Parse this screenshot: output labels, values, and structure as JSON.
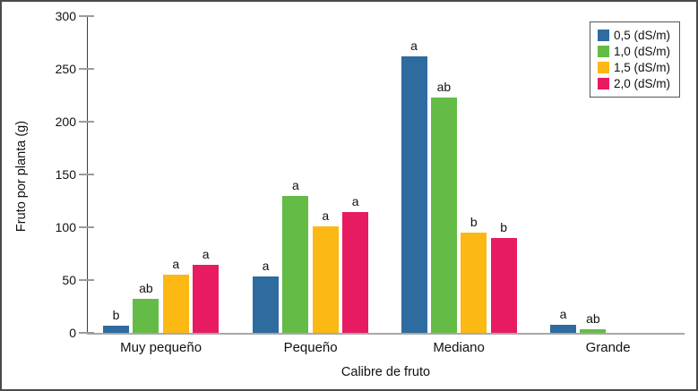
{
  "figure": {
    "background": "#ffffff",
    "border_color": "#4a4a4a",
    "axis_line_color": "#3f3f3f",
    "baseline_color": "#a8a8a8",
    "tick_color": "#9b9b9b"
  },
  "chart_data": {
    "type": "bar",
    "title": "",
    "xlabel": "Calibre de fruto",
    "ylabel": "Fruto por planta (g)",
    "ylim": [
      0,
      300
    ],
    "yticks": [
      0,
      50,
      100,
      150,
      200,
      250,
      300
    ],
    "grid": false,
    "legend_position": "top-right",
    "categories": [
      "Muy pequeño",
      "Pequeño",
      "Mediano",
      "Grande"
    ],
    "series": [
      {
        "name": "0,5 (dS/m)",
        "color": "#2e6b9f",
        "values": [
          7,
          53,
          262,
          8
        ],
        "sig_labels": [
          "b",
          "a",
          "a",
          "a"
        ]
      },
      {
        "name": "1,0 (dS/m)",
        "color": "#64bc46",
        "values": [
          32,
          130,
          223,
          3
        ],
        "sig_labels": [
          "ab",
          "a",
          "ab",
          "ab"
        ]
      },
      {
        "name": "1,5 (dS/m)",
        "color": "#fcb813",
        "values": [
          55,
          101,
          95,
          0
        ],
        "sig_labels": [
          "a",
          "a",
          "b",
          ""
        ]
      },
      {
        "name": "2,0 (dS/m)",
        "color": "#e81a62",
        "values": [
          64,
          114,
          90,
          0
        ],
        "sig_labels": [
          "a",
          "a",
          "b",
          ""
        ]
      }
    ]
  }
}
